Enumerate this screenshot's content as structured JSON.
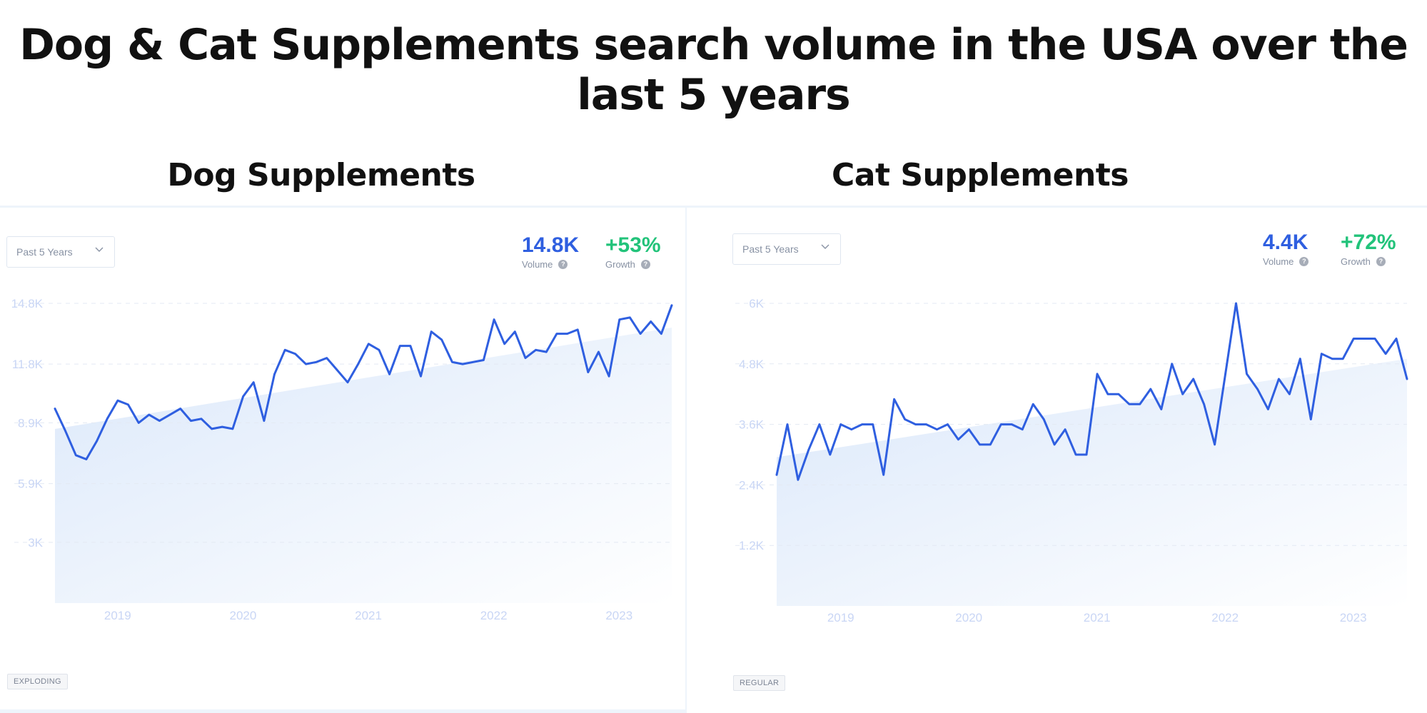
{
  "title": "Dog & Cat Supplements search volume in the USA over the last 5 years",
  "colors": {
    "line": "#2f5fe0",
    "volume": "#2f5fe0",
    "growth": "#22c37a",
    "area": "#dbe8fa"
  },
  "panels": [
    {
      "heading": "Dog Supplements",
      "dropdown": "Past 5 Years",
      "volume_value": "14.8K",
      "volume_label": "Volume",
      "growth_value": "+53%",
      "growth_label": "Growth",
      "badge": "EXPLODING"
    },
    {
      "heading": "Cat Supplements",
      "dropdown": "Past 5 Years",
      "volume_value": "4.4K",
      "volume_label": "Volume",
      "growth_value": "+72%",
      "growth_label": "Growth",
      "badge": "REGULAR"
    }
  ],
  "chart_data": [
    {
      "type": "line",
      "title": "Dog Supplements",
      "ylim": [
        0,
        14800
      ],
      "y_ticks": [
        3000,
        5900,
        8900,
        11800,
        14800
      ],
      "y_tick_labels": [
        "3K",
        "5.9K",
        "8.9K",
        "11.8K",
        "14.8K"
      ],
      "x_ticks": [
        "2019",
        "2020",
        "2021",
        "2022",
        "2023"
      ],
      "x_range": [
        2018.5,
        2023.42
      ],
      "x_tick_positions": [
        2019,
        2020,
        2021,
        2022,
        2023
      ],
      "grid": true,
      "trend": {
        "start": 8600,
        "end": 13600
      },
      "series": [
        {
          "values": [
            9600,
            8500,
            7300,
            7100,
            8000,
            9100,
            10000,
            9800,
            8900,
            9300,
            9000,
            9300,
            9600,
            9000,
            9100,
            8600,
            8700,
            8600,
            10200,
            10900,
            9000,
            11300,
            12500,
            12300,
            11800,
            11900,
            12100,
            11500,
            10900,
            11800,
            12800,
            12500,
            11300,
            12700,
            12700,
            11200,
            13400,
            13000,
            11900,
            11800,
            11900,
            12000,
            14000,
            12800,
            13400,
            12100,
            12500,
            12400,
            13300,
            13300,
            13500,
            11400,
            12400,
            11200,
            14000,
            14100,
            13300,
            13900,
            13300,
            14700
          ]
        }
      ]
    },
    {
      "type": "line",
      "title": "Cat Supplements",
      "ylim": [
        0,
        6000
      ],
      "y_ticks": [
        1200,
        2400,
        3600,
        4800,
        6000
      ],
      "y_tick_labels": [
        "1.2K",
        "2.4K",
        "3.6K",
        "4.8K",
        "6K"
      ],
      "x_ticks": [
        "2019",
        "2020",
        "2021",
        "2022",
        "2023"
      ],
      "x_range": [
        2018.5,
        2023.42
      ],
      "x_tick_positions": [
        2019,
        2020,
        2021,
        2022,
        2023
      ],
      "grid": true,
      "trend": {
        "start": 2950,
        "end": 4900
      },
      "series": [
        {
          "values": [
            2600,
            3600,
            2500,
            3100,
            3600,
            3000,
            3600,
            3500,
            3600,
            3600,
            2600,
            4100,
            3700,
            3600,
            3600,
            3500,
            3600,
            3300,
            3500,
            3200,
            3200,
            3600,
            3600,
            3500,
            4000,
            3700,
            3200,
            3500,
            3000,
            3000,
            4600,
            4200,
            4200,
            4000,
            4000,
            4300,
            3900,
            4800,
            4200,
            4500,
            4000,
            3200,
            4600,
            6000,
            4600,
            4300,
            3900,
            4500,
            4200,
            4900,
            3700,
            5000,
            4900,
            4900,
            5300,
            5300,
            5300,
            5000,
            5300,
            4500
          ]
        }
      ]
    }
  ]
}
